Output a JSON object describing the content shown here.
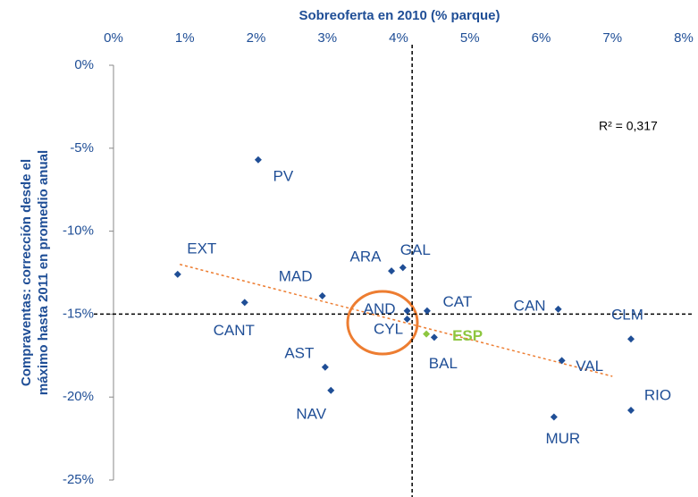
{
  "chart_data": {
    "type": "scatter",
    "x_axis_title": "Sobreoferta en 2010 (% parque)",
    "y_axis_title": [
      "Compraventas: corrección desde el",
      "máximo hasta 2011 en promedio anual"
    ],
    "annotation": "R² = 0,317",
    "labels": [
      "PV",
      "EXT",
      "CANT",
      "MAD",
      "AST",
      "NAV",
      "ARA",
      "GAL",
      "AND",
      "CYL",
      "CAT",
      "ESP",
      "BAL",
      "CAN",
      "CLM",
      "VAL",
      "MUR",
      "RIO"
    ],
    "x": [
      2.03,
      0.9,
      1.84,
      2.93,
      2.97,
      3.05,
      3.9,
      4.06,
      4.12,
      4.12,
      4.4,
      4.39,
      4.5,
      6.24,
      7.26,
      6.29,
      6.18,
      7.26
    ],
    "values": [
      -5.7,
      -12.6,
      -14.3,
      -13.9,
      -18.2,
      -19.6,
      -12.4,
      -12.2,
      -14.8,
      -15.3,
      -14.8,
      -16.2,
      -16.4,
      -14.7,
      -16.5,
      -17.8,
      -21.2,
      -20.8
    ],
    "point_colors": [
      "#1f4e96",
      "#1f4e96",
      "#1f4e96",
      "#1f4e96",
      "#1f4e96",
      "#1f4e96",
      "#1f4e96",
      "#1f4e96",
      "#1f4e96",
      "#1f4e96",
      "#1f4e96",
      "#8dc63f",
      "#1f4e96",
      "#1f4e96",
      "#1f4e96",
      "#1f4e96",
      "#1f4e96",
      "#1f4e96"
    ],
    "trendline": {
      "x": [
        0.93,
        7.0
      ],
      "y": [
        -12.0,
        -18.75
      ],
      "color": "#ed7d31"
    },
    "reference_lines": {
      "x": 4.19,
      "y": -15
    },
    "xlim": [
      0,
      8
    ],
    "xticks": [
      {
        "value": 0,
        "label": "0%"
      },
      {
        "value": 1,
        "label": "1%"
      },
      {
        "value": 2,
        "label": "2%"
      },
      {
        "value": 3,
        "label": "3%"
      },
      {
        "value": 4,
        "label": "4%"
      },
      {
        "value": 5,
        "label": "5%"
      },
      {
        "value": 6,
        "label": "6%"
      },
      {
        "value": 7,
        "label": "7%"
      },
      {
        "value": 8,
        "label": "8%"
      }
    ],
    "ylim": [
      -25,
      0
    ],
    "yticks": [
      {
        "value": 0,
        "label": "0%"
      },
      {
        "value": -5,
        "label": "-5%"
      },
      {
        "value": -10,
        "label": "-10%"
      },
      {
        "value": -15,
        "label": "-15%"
      },
      {
        "value": -20,
        "label": "-20%"
      },
      {
        "value": -25,
        "label": "-25%"
      }
    ]
  }
}
